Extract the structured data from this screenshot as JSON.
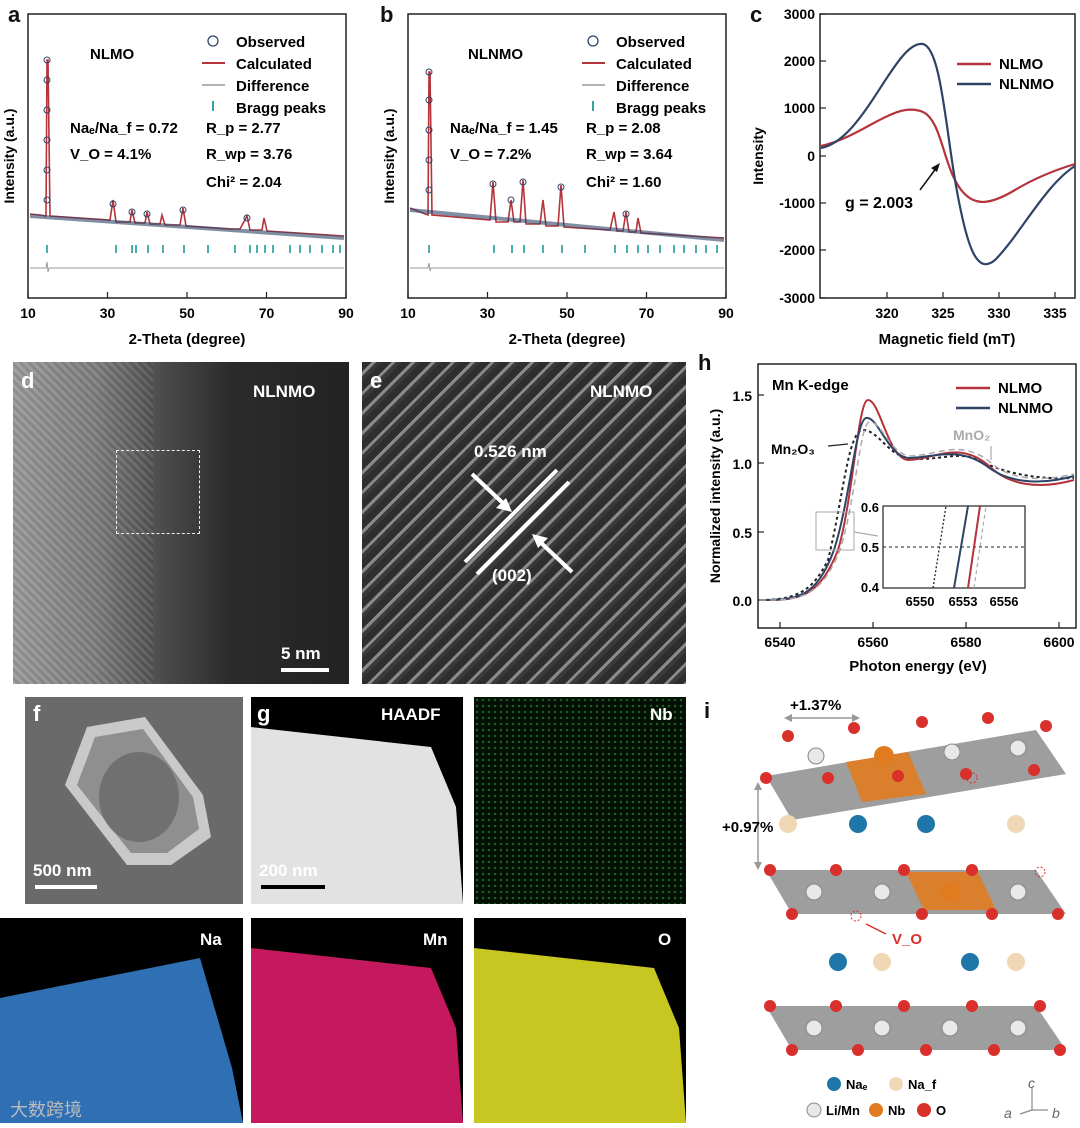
{
  "panel_labels": {
    "a": "a",
    "b": "b",
    "c": "c",
    "d": "d",
    "e": "e",
    "f": "f",
    "g": "g",
    "h": "h",
    "i": "i"
  },
  "panel_a": {
    "sample": "NLMO",
    "legend": [
      "Observed",
      "Calculated",
      "Difference",
      "Bragg peaks"
    ],
    "stats_left": [
      "Naₑ/Na_f = 0.72",
      "V_O = 4.1%"
    ],
    "stats_right": [
      "R_p = 2.77",
      "R_wp = 3.76",
      "Chi² = 2.04"
    ],
    "xlabel": "2-Theta (degree)",
    "ylabel": "Intensity (a.u.)",
    "xticks": [
      "10",
      "30",
      "50",
      "70",
      "90"
    ]
  },
  "panel_b": {
    "sample": "NLNMO",
    "legend": [
      "Observed",
      "Calculated",
      "Difference",
      "Bragg peaks"
    ],
    "stats_left": [
      "Naₑ/Na_f = 1.45",
      "V_O = 7.2%"
    ],
    "stats_right": [
      "R_p = 2.08",
      "R_wp = 3.64",
      "Chi² = 1.60"
    ],
    "xlabel": "2-Theta (degree)",
    "ylabel": "Intensity (a.u.)",
    "xticks": [
      "10",
      "30",
      "50",
      "70",
      "90"
    ]
  },
  "panel_c": {
    "xlabel": "Magnetic field (mT)",
    "ylabel": "Intensity",
    "xticks": [
      "320",
      "325",
      "330",
      "335"
    ],
    "yticks": [
      "3000",
      "2000",
      "1000",
      "0",
      "-1000",
      "-2000",
      "-3000"
    ],
    "legend": [
      "NLMO",
      "NLNMO"
    ],
    "annotation": "g = 2.003",
    "colors": {
      "NLMO": "#b5333a",
      "NLNMO": "#2d4467"
    }
  },
  "panel_d": {
    "sample": "NLNMO",
    "scale": "5 nm"
  },
  "panel_e": {
    "sample": "NLNMO",
    "spacing": "0.526 nm",
    "plane": "(002)"
  },
  "panel_f": {
    "scale": "500 nm"
  },
  "panel_g": {
    "haadf": "HAADF",
    "scale": "200 nm",
    "maps": [
      "Nb",
      "Na",
      "Mn",
      "O"
    ]
  },
  "panel_h": {
    "title": "Mn K-edge",
    "legend": [
      "NLMO",
      "NLNMO"
    ],
    "ref1": "Mn₂O₃",
    "ref2": "MnO₂",
    "xlabel": "Photon energy (eV)",
    "ylabel": "Normalized intensity (a.u.)",
    "xticks": [
      "6540",
      "6560",
      "6580",
      "6600"
    ],
    "yticks": [
      "0.0",
      "0.5",
      "1.0",
      "1.5"
    ],
    "inset_xticks": [
      "6550",
      "6553",
      "6556"
    ],
    "inset_yticks": [
      "0.6",
      "0.5",
      "0.4"
    ]
  },
  "panel_i": {
    "lattice_a": "+1.37%",
    "lattice_c": "+0.97%",
    "vacancy": "V_O",
    "legend": [
      "Naₑ",
      "Na_f",
      "Li/Mn",
      "Nb",
      "O"
    ],
    "axes": [
      "c",
      "a",
      "b"
    ]
  },
  "watermark": "大数跨境"
}
